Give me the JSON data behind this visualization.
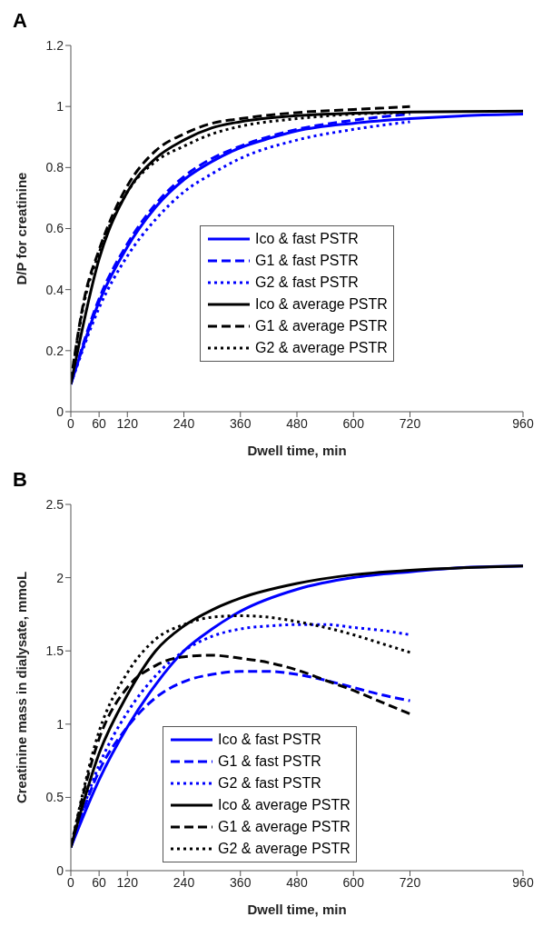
{
  "chart_data": [
    {
      "type": "line",
      "title": "A",
      "xlabel": "Dwell time, min",
      "ylabel": "D/P for creatinine",
      "xlim": [
        0,
        960
      ],
      "xticks": [
        0,
        60,
        120,
        240,
        360,
        480,
        600,
        720,
        960
      ],
      "ylim": [
        0,
        1.2
      ],
      "yticks": [
        0,
        0.2,
        0.4,
        0.6,
        0.8,
        1,
        1.2
      ],
      "grid": false,
      "legend": "center",
      "marker": "none",
      "series": [
        {
          "name": "Ico & fast PSTR",
          "color": "#0000ff",
          "line_style": "solid",
          "x": [
            0,
            60,
            120,
            180,
            240,
            300,
            360,
            420,
            480,
            600,
            720,
            840,
            960
          ],
          "values": [
            0.09,
            0.36,
            0.54,
            0.67,
            0.76,
            0.82,
            0.865,
            0.895,
            0.92,
            0.945,
            0.96,
            0.97,
            0.975
          ]
        },
        {
          "name": "G1 & fast PSTR",
          "color": "#0000ff",
          "line_style": "dashed",
          "x": [
            0,
            60,
            120,
            180,
            240,
            300,
            360,
            480,
            600,
            720
          ],
          "values": [
            0.09,
            0.37,
            0.55,
            0.68,
            0.77,
            0.83,
            0.87,
            0.925,
            0.955,
            0.975
          ]
        },
        {
          "name": "G2 & fast PSTR",
          "color": "#0000ff",
          "line_style": "dotted",
          "x": [
            0,
            60,
            120,
            180,
            240,
            300,
            360,
            480,
            600,
            720
          ],
          "values": [
            0.09,
            0.34,
            0.51,
            0.63,
            0.72,
            0.78,
            0.83,
            0.89,
            0.925,
            0.95
          ]
        },
        {
          "name": "Ico & average PSTR",
          "color": "#000000",
          "line_style": "solid",
          "x": [
            0,
            60,
            120,
            180,
            240,
            300,
            360,
            480,
            600,
            720,
            960
          ],
          "values": [
            0.09,
            0.5,
            0.72,
            0.83,
            0.89,
            0.93,
            0.95,
            0.97,
            0.978,
            0.982,
            0.985
          ]
        },
        {
          "name": "G1 & average PSTR",
          "color": "#000000",
          "line_style": "dashed",
          "x": [
            0,
            30,
            60,
            120,
            180,
            240,
            300,
            360,
            480,
            600,
            720
          ],
          "values": [
            0.1,
            0.38,
            0.53,
            0.74,
            0.855,
            0.91,
            0.945,
            0.96,
            0.98,
            0.99,
            1.0
          ]
        },
        {
          "name": "G2 & average PSTR",
          "color": "#000000",
          "line_style": "dotted",
          "x": [
            0,
            30,
            60,
            120,
            180,
            240,
            300,
            360,
            480,
            600,
            720
          ],
          "values": [
            0.1,
            0.37,
            0.52,
            0.72,
            0.82,
            0.87,
            0.91,
            0.935,
            0.96,
            0.975,
            0.98
          ]
        }
      ]
    },
    {
      "type": "line",
      "title": "B",
      "xlabel": "Dwell time, min",
      "ylabel": "Creatinine mass in dialysate, mmoL",
      "xlim": [
        0,
        960
      ],
      "xticks": [
        0,
        60,
        120,
        240,
        360,
        480,
        600,
        720,
        960
      ],
      "ylim": [
        0,
        2.5
      ],
      "yticks": [
        0,
        0.5,
        1,
        1.5,
        2,
        2.5
      ],
      "grid": false,
      "legend": "bottom",
      "marker": "none",
      "series": [
        {
          "name": "Ico & fast PSTR",
          "color": "#0000ff",
          "line_style": "solid",
          "x": [
            0,
            60,
            120,
            180,
            240,
            300,
            360,
            480,
            600,
            720,
            840,
            960
          ],
          "values": [
            0.16,
            0.62,
            0.98,
            1.27,
            1.5,
            1.65,
            1.77,
            1.92,
            2.0,
            2.04,
            2.07,
            2.08
          ]
        },
        {
          "name": "G1 & fast PSTR",
          "color": "#0000ff",
          "line_style": "dashed",
          "x": [
            0,
            60,
            120,
            180,
            240,
            300,
            360,
            420,
            480,
            540,
            600,
            660,
            720
          ],
          "values": [
            0.16,
            0.68,
            0.98,
            1.18,
            1.29,
            1.34,
            1.36,
            1.36,
            1.34,
            1.3,
            1.25,
            1.2,
            1.16
          ]
        },
        {
          "name": "G2 & fast PSTR",
          "color": "#0000ff",
          "line_style": "dotted",
          "x": [
            0,
            60,
            120,
            180,
            240,
            300,
            360,
            420,
            480,
            540,
            600,
            660,
            720
          ],
          "values": [
            0.16,
            0.72,
            1.08,
            1.33,
            1.5,
            1.6,
            1.65,
            1.67,
            1.68,
            1.68,
            1.66,
            1.64,
            1.61
          ]
        },
        {
          "name": "Ico & average PSTR",
          "color": "#000000",
          "line_style": "solid",
          "x": [
            0,
            60,
            120,
            180,
            240,
            300,
            360,
            480,
            600,
            720,
            960
          ],
          "values": [
            0.16,
            0.8,
            1.2,
            1.5,
            1.67,
            1.78,
            1.86,
            1.96,
            2.02,
            2.05,
            2.08
          ]
        },
        {
          "name": "G1 & average PSTR",
          "color": "#000000",
          "line_style": "dashed",
          "x": [
            0,
            60,
            120,
            180,
            240,
            300,
            360,
            420,
            480,
            540,
            600,
            660,
            720
          ],
          "values": [
            0.16,
            0.9,
            1.25,
            1.4,
            1.46,
            1.47,
            1.45,
            1.42,
            1.37,
            1.3,
            1.23,
            1.15,
            1.07
          ]
        },
        {
          "name": "G2 & average PSTR",
          "color": "#000000",
          "line_style": "dotted",
          "x": [
            0,
            60,
            120,
            180,
            240,
            300,
            360,
            420,
            480,
            540,
            600,
            660,
            720
          ],
          "values": [
            0.16,
            0.95,
            1.35,
            1.58,
            1.68,
            1.73,
            1.74,
            1.73,
            1.7,
            1.66,
            1.61,
            1.55,
            1.49
          ]
        }
      ]
    }
  ]
}
